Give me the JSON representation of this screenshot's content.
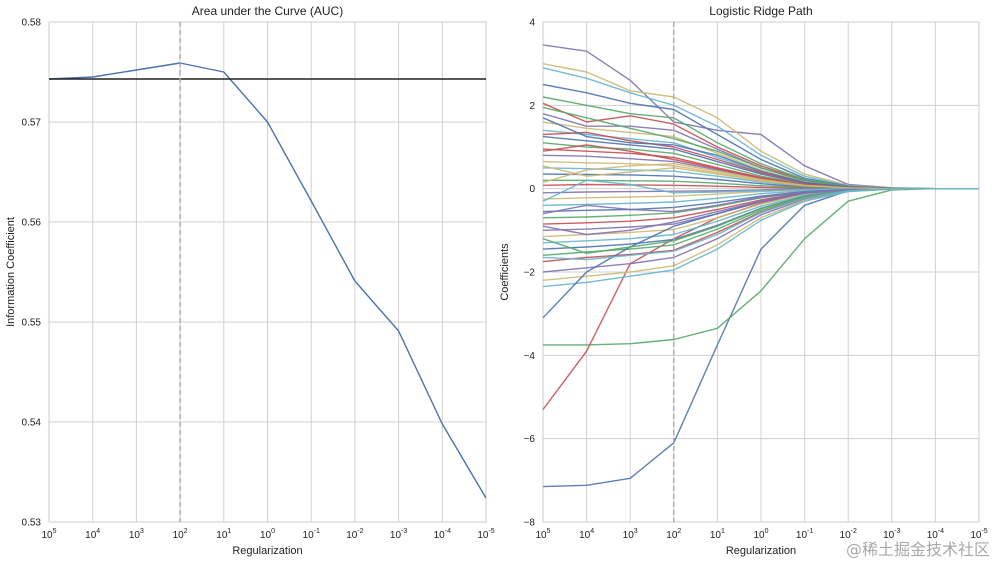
{
  "watermark": "@稀土掘金技术社区",
  "chart_data": [
    {
      "type": "line",
      "title": "Area under the Curve (AUC)",
      "xlabel": "Regularization",
      "ylabel": "Information Coefficient",
      "x_ticks": [
        {
          "base": "10",
          "exp": "5"
        },
        {
          "base": "10",
          "exp": "4"
        },
        {
          "base": "10",
          "exp": "3"
        },
        {
          "base": "10",
          "exp": "2"
        },
        {
          "base": "10",
          "exp": "1"
        },
        {
          "base": "10",
          "exp": "0"
        },
        {
          "base": "10",
          "exp": "-1"
        },
        {
          "base": "10",
          "exp": "-2"
        },
        {
          "base": "10",
          "exp": "-3"
        },
        {
          "base": "10",
          "exp": "-4"
        },
        {
          "base": "10",
          "exp": "-5"
        }
      ],
      "y_ticks": [
        "0.53",
        "0.54",
        "0.55",
        "0.56",
        "0.57",
        "0.58"
      ],
      "ylim": [
        0.53,
        0.58
      ],
      "grid": true,
      "color": "#4c72b0",
      "series": [
        {
          "values": [
            0.5743,
            0.5745,
            0.5752,
            0.5759,
            0.575,
            0.57,
            0.5621,
            0.5541,
            0.5491,
            0.5398,
            0.5324
          ]
        }
      ],
      "hline": {
        "y": 0.5743,
        "color": "#222222"
      },
      "vline": {
        "x_index": 3,
        "color": "#a8a8a8"
      }
    },
    {
      "type": "line",
      "title": "Logistic Ridge Path",
      "xlabel": "Regularization",
      "ylabel": "Coefficients",
      "x_ticks": [
        {
          "base": "10",
          "exp": "5"
        },
        {
          "base": "10",
          "exp": "4"
        },
        {
          "base": "10",
          "exp": "3"
        },
        {
          "base": "10",
          "exp": "2"
        },
        {
          "base": "10",
          "exp": "1"
        },
        {
          "base": "10",
          "exp": "0"
        },
        {
          "base": "10",
          "exp": "-1"
        },
        {
          "base": "10",
          "exp": "-2"
        },
        {
          "base": "10",
          "exp": "-3"
        },
        {
          "base": "10",
          "exp": "-4"
        },
        {
          "base": "10",
          "exp": "-5"
        }
      ],
      "y_ticks": [
        "−8",
        "−6",
        "−4",
        "−2",
        "0",
        "2",
        "4"
      ],
      "ylim": [
        -8,
        4
      ],
      "grid": true,
      "colors": [
        "#4c72b0",
        "#55a868",
        "#c44e52",
        "#8172b2",
        "#ccb974",
        "#64b5cd"
      ],
      "vline": {
        "x_index": 3,
        "color": "#a8a8a8"
      },
      "series": [
        {
          "values": [
            -7.15,
            -7.12,
            -6.95,
            -6.1,
            -3.75,
            -1.45,
            -0.4,
            -0.05,
            0.0,
            0.0,
            0.0
          ]
        },
        {
          "values": [
            -3.75,
            -3.75,
            -3.72,
            -3.62,
            -3.35,
            -2.45,
            -1.2,
            -0.3,
            -0.03,
            0.0,
            0.0
          ]
        },
        {
          "values": [
            -5.3,
            -3.9,
            -1.8,
            -1.2,
            -0.7,
            -0.35,
            -0.1,
            -0.02,
            0.0,
            0.0,
            0.0
          ]
        },
        {
          "values": [
            3.45,
            3.3,
            2.6,
            1.6,
            1.4,
            1.3,
            0.55,
            0.1,
            0.02,
            0.0,
            0.0
          ]
        },
        {
          "values": [
            3.0,
            2.8,
            2.35,
            2.2,
            1.7,
            0.9,
            0.35,
            0.08,
            0.01,
            0.0,
            0.0
          ]
        },
        {
          "values": [
            2.9,
            2.65,
            2.3,
            2.0,
            1.5,
            0.8,
            0.3,
            0.07,
            0.01,
            0.0,
            0.0
          ]
        },
        {
          "values": [
            2.5,
            2.3,
            2.05,
            1.9,
            1.3,
            0.7,
            0.25,
            0.06,
            0.01,
            0.0,
            0.0
          ]
        },
        {
          "values": [
            2.2,
            2.0,
            1.8,
            1.7,
            1.1,
            0.6,
            0.22,
            0.05,
            0.01,
            0.0,
            0.0
          ]
        },
        {
          "values": [
            2.05,
            1.6,
            1.75,
            1.55,
            1.0,
            0.55,
            0.2,
            0.05,
            0.01,
            0.0,
            0.0
          ]
        },
        {
          "values": [
            1.8,
            1.5,
            1.5,
            1.4,
            0.95,
            0.5,
            0.18,
            0.04,
            0.01,
            0.0,
            0.0
          ]
        },
        {
          "values": [
            1.6,
            1.45,
            1.35,
            1.25,
            0.85,
            0.45,
            0.16,
            0.04,
            0.0,
            0.0,
            0.0
          ]
        },
        {
          "values": [
            1.4,
            1.3,
            1.2,
            1.1,
            0.75,
            0.4,
            0.14,
            0.03,
            0.0,
            0.0,
            0.0
          ]
        },
        {
          "values": [
            1.25,
            1.15,
            1.05,
            0.95,
            0.65,
            0.35,
            0.12,
            0.03,
            0.0,
            0.0,
            0.0
          ]
        },
        {
          "values": [
            1.1,
            1.0,
            0.95,
            0.85,
            0.58,
            0.3,
            0.1,
            0.02,
            0.0,
            0.0,
            0.0
          ]
        },
        {
          "values": [
            0.95,
            0.9,
            0.85,
            0.75,
            0.5,
            0.27,
            0.09,
            0.02,
            0.0,
            0.0,
            0.0
          ]
        },
        {
          "values": [
            0.8,
            0.78,
            0.72,
            0.65,
            0.45,
            0.23,
            0.08,
            0.02,
            0.0,
            0.0,
            0.0
          ]
        },
        {
          "values": [
            0.65,
            0.62,
            0.6,
            0.55,
            0.38,
            0.2,
            0.07,
            0.02,
            0.0,
            0.0,
            0.0
          ]
        },
        {
          "values": [
            0.5,
            0.48,
            0.45,
            0.42,
            0.3,
            0.16,
            0.06,
            0.01,
            0.0,
            0.0,
            0.0
          ]
        },
        {
          "values": [
            0.35,
            0.34,
            0.33,
            0.3,
            0.22,
            0.12,
            0.04,
            0.01,
            0.0,
            0.0,
            0.0
          ]
        },
        {
          "values": [
            0.2,
            0.2,
            0.19,
            0.18,
            0.13,
            0.07,
            0.03,
            0.01,
            0.0,
            0.0,
            0.0
          ]
        },
        {
          "values": [
            0.08,
            0.1,
            0.09,
            0.08,
            0.06,
            0.03,
            0.01,
            0.0,
            0.0,
            0.0,
            0.0
          ]
        },
        {
          "values": [
            -0.1,
            -0.08,
            -0.07,
            -0.06,
            -0.05,
            -0.03,
            -0.01,
            0.0,
            0.0,
            0.0,
            0.0
          ]
        },
        {
          "values": [
            -0.25,
            -0.22,
            -0.2,
            -0.18,
            -0.13,
            -0.07,
            -0.03,
            -0.01,
            0.0,
            0.0,
            0.0
          ]
        },
        {
          "values": [
            -0.4,
            -0.38,
            -0.35,
            -0.32,
            -0.23,
            -0.12,
            -0.05,
            -0.01,
            0.0,
            0.0,
            0.0
          ]
        },
        {
          "values": [
            -0.55,
            -0.52,
            -0.5,
            -0.45,
            -0.33,
            -0.18,
            -0.07,
            -0.02,
            0.0,
            0.0,
            0.0
          ]
        },
        {
          "values": [
            -0.7,
            -0.68,
            -0.64,
            -0.58,
            -0.42,
            -0.22,
            -0.08,
            -0.02,
            0.0,
            0.0,
            0.0
          ]
        },
        {
          "values": [
            -0.85,
            -0.82,
            -0.78,
            -0.7,
            -0.5,
            -0.27,
            -0.1,
            -0.02,
            0.0,
            0.0,
            0.0
          ]
        },
        {
          "values": [
            -1.0,
            -0.97,
            -0.92,
            -0.85,
            -0.6,
            -0.32,
            -0.12,
            -0.03,
            0.0,
            0.0,
            0.0
          ]
        },
        {
          "values": [
            -1.15,
            -1.1,
            -1.05,
            -0.98,
            -0.7,
            -0.37,
            -0.14,
            -0.03,
            0.0,
            0.0,
            0.0
          ]
        },
        {
          "values": [
            -1.3,
            -1.25,
            -1.2,
            -1.1,
            -0.78,
            -0.42,
            -0.16,
            -0.04,
            0.0,
            0.0,
            0.0
          ]
        },
        {
          "values": [
            -1.45,
            -1.4,
            -1.33,
            -1.22,
            -0.88,
            -0.47,
            -0.18,
            -0.04,
            0.0,
            0.0,
            0.0
          ]
        },
        {
          "values": [
            -1.6,
            -1.52,
            -1.45,
            -1.35,
            -0.97,
            -0.52,
            -0.2,
            -0.05,
            0.0,
            0.0,
            0.0
          ]
        },
        {
          "values": [
            -1.75,
            -1.65,
            -1.58,
            -1.48,
            -1.05,
            -0.56,
            -0.22,
            -0.05,
            0.0,
            0.0,
            0.0
          ]
        },
        {
          "values": [
            -2.0,
            -1.9,
            -1.8,
            -1.65,
            -1.2,
            -0.63,
            -0.25,
            -0.06,
            -0.01,
            0.0,
            0.0
          ]
        },
        {
          "values": [
            -2.2,
            -2.1,
            -2.0,
            -1.85,
            -1.35,
            -0.7,
            -0.28,
            -0.07,
            -0.01,
            0.0,
            0.0
          ]
        },
        {
          "values": [
            -2.35,
            -2.25,
            -2.1,
            -1.95,
            -1.45,
            -0.76,
            -0.3,
            -0.07,
            -0.01,
            0.0,
            0.0
          ]
        },
        {
          "values": [
            -3.1,
            -2.0,
            -1.4,
            -0.9,
            -0.6,
            -0.3,
            -0.1,
            -0.02,
            0.0,
            0.0,
            0.0
          ]
        },
        {
          "values": [
            1.95,
            1.7,
            1.45,
            1.2,
            0.9,
            0.5,
            0.2,
            0.05,
            0.01,
            0.0,
            0.0
          ]
        },
        {
          "values": [
            1.3,
            1.35,
            1.15,
            1.0,
            0.7,
            0.38,
            0.14,
            0.03,
            0.0,
            0.0,
            0.0
          ]
        },
        {
          "values": [
            -0.9,
            -1.1,
            -1.0,
            -0.8,
            -0.55,
            -0.3,
            -0.11,
            -0.03,
            0.0,
            0.0,
            0.0
          ]
        },
        {
          "values": [
            0.55,
            0.3,
            0.4,
            0.5,
            0.35,
            0.18,
            0.07,
            0.02,
            0.0,
            0.0,
            0.0
          ]
        },
        {
          "values": [
            -0.3,
            0.2,
            0.1,
            -0.1,
            -0.08,
            -0.05,
            -0.02,
            0.0,
            0.0,
            0.0,
            0.0
          ]
        },
        {
          "values": [
            1.7,
            1.25,
            1.1,
            1.05,
            0.8,
            0.42,
            0.15,
            0.04,
            0.0,
            0.0,
            0.0
          ]
        },
        {
          "values": [
            -1.2,
            -1.55,
            -1.4,
            -1.25,
            -0.9,
            -0.48,
            -0.18,
            -0.04,
            0.0,
            0.0,
            0.0
          ]
        },
        {
          "values": [
            0.9,
            1.05,
            0.9,
            0.7,
            0.48,
            0.25,
            0.1,
            0.02,
            0.0,
            0.0,
            0.0
          ]
        },
        {
          "values": [
            -0.6,
            -0.4,
            -0.5,
            -0.55,
            -0.4,
            -0.2,
            -0.08,
            -0.02,
            0.0,
            0.0,
            0.0
          ]
        },
        {
          "values": [
            0.15,
            0.45,
            0.55,
            0.6,
            0.42,
            0.22,
            0.08,
            0.02,
            0.0,
            0.0,
            0.0
          ]
        },
        {
          "values": [
            -1.65,
            -1.7,
            -1.6,
            -1.5,
            -1.1,
            -0.58,
            -0.22,
            -0.05,
            0.0,
            0.0,
            0.0
          ]
        }
      ]
    }
  ]
}
